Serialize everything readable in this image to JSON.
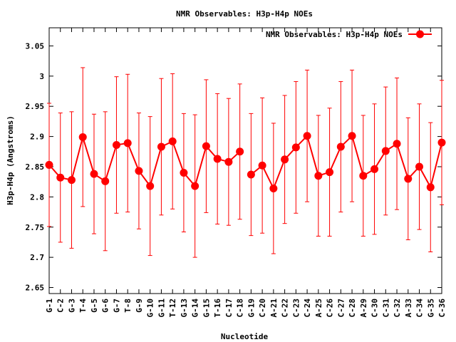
{
  "colors": {
    "series": "#ff0000",
    "axis": "#000000"
  },
  "chart_data": {
    "type": "line",
    "title": "NMR Observables: H3p-H4p NOEs",
    "xlabel": "Nucleotide",
    "ylabel": "H3p-H4p (Angstroms)",
    "ylim": [
      2.64,
      3.08
    ],
    "yticks": [
      "2.65",
      "2.7",
      "2.75",
      "2.8",
      "2.85",
      "2.9",
      "2.95",
      "3",
      "3.05"
    ],
    "grid": false,
    "legend_position": "top-right",
    "categories": [
      "G-1",
      "C-2",
      "G-3",
      "T-4",
      "G-5",
      "G-6",
      "G-7",
      "T-8",
      "G-9",
      "G-10",
      "G-11",
      "T-12",
      "G-13",
      "G-14",
      "G-15",
      "T-16",
      "C-17",
      "C-18",
      "G-19",
      "C-20",
      "A-21",
      "C-22",
      "C-23",
      "C-24",
      "A-25",
      "C-26",
      "C-27",
      "C-28",
      "A-29",
      "C-30",
      "C-31",
      "C-32",
      "A-33",
      "C-34",
      "G-35",
      "C-36"
    ],
    "series": [
      {
        "name": "NMR Observables: H3p-H4p NOEs",
        "segments": [
          [
            0,
            17
          ],
          [
            18,
            35
          ]
        ],
        "values": [
          2.853,
          2.832,
          2.828,
          2.899,
          2.838,
          2.826,
          2.886,
          2.889,
          2.843,
          2.818,
          2.883,
          2.892,
          2.84,
          2.818,
          2.884,
          2.863,
          2.858,
          2.875,
          2.837,
          2.852,
          2.814,
          2.862,
          2.882,
          2.901,
          2.835,
          2.841,
          2.883,
          2.901,
          2.835,
          2.846,
          2.876,
          2.888,
          2.83,
          2.85,
          2.816,
          2.89
        ],
        "errors": [
          0.102,
          0.107,
          0.113,
          0.115,
          0.099,
          0.115,
          0.113,
          0.114,
          0.096,
          0.115,
          0.113,
          0.112,
          0.098,
          0.118,
          0.11,
          0.108,
          0.105,
          0.112,
          0.101,
          0.112,
          0.108,
          0.106,
          0.109,
          0.109,
          0.1,
          0.106,
          0.108,
          0.109,
          0.1,
          0.108,
          0.106,
          0.109,
          0.101,
          0.104,
          0.107,
          0.103
        ]
      }
    ]
  }
}
